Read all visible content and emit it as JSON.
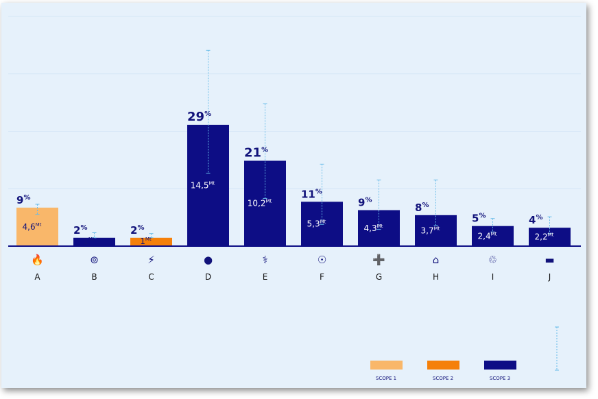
{
  "chart_data": {
    "type": "bar",
    "categories": [
      "A",
      "B",
      "C",
      "D",
      "E",
      "F",
      "G",
      "H",
      "I",
      "J"
    ],
    "percent_labels": [
      "9%",
      "2%",
      "2%",
      "29%",
      "21%",
      "11%",
      "9%",
      "8%",
      "5%",
      "4%"
    ],
    "values": [
      4.6,
      1,
      1,
      14.5,
      10.2,
      5.3,
      4.3,
      3.7,
      2.4,
      2.2
    ],
    "value_labels": [
      "4,6",
      "1",
      "1",
      "14,5",
      "10,2",
      "5,3",
      "4,3",
      "3,7",
      "2,4",
      "2,2"
    ],
    "unit": "Mt",
    "scope": [
      1,
      3,
      2,
      3,
      3,
      3,
      3,
      3,
      3,
      3
    ],
    "error_high": [
      5.0,
      1.6,
      1.5,
      23.4,
      17.0,
      9.8,
      7.9,
      7.9,
      3.3,
      3.5
    ],
    "error_low": [
      3.8,
      1.0,
      1.0,
      8.7,
      5.7,
      2.6,
      2.0,
      2.5,
      1.7,
      1.5
    ],
    "icons": [
      "flame-icon",
      "washing-machine-icon",
      "bolt-icon",
      "pills-icon",
      "stethoscope-icon",
      "plate-cutlery-icon",
      "ambulance-car-icon",
      "home-care-icon",
      "trash-icon",
      "car-icon"
    ],
    "ylim": [
      0,
      24
    ],
    "legend": [
      {
        "label": "SCOPE 1",
        "color": "#f9b76a"
      },
      {
        "label": "SCOPE 2",
        "color": "#f5800a"
      },
      {
        "label": "SCOPE 3",
        "color": "#0d0d85"
      }
    ],
    "colors": {
      "scope1": "#f9b76a",
      "scope2": "#f5800a",
      "scope3": "#0d0d85",
      "errorbar": "#66bbe8",
      "text": "#11127a",
      "background": "#e6f1fb"
    }
  }
}
